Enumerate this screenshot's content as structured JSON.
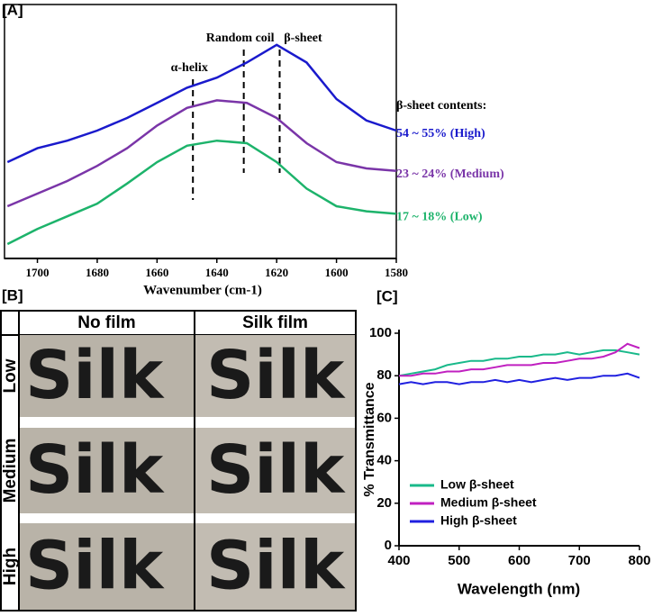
{
  "chart_data": [
    {
      "type": "line",
      "title": "[A]",
      "xlabel": "Wavenumber (cm-1)",
      "x": [
        1710,
        1700,
        1690,
        1680,
        1670,
        1660,
        1650,
        1640,
        1630,
        1620,
        1610,
        1600,
        1590,
        1580
      ],
      "xlim": [
        1711,
        1580
      ],
      "xticks": [
        1700,
        1680,
        1660,
        1640,
        1620,
        1600,
        1580
      ],
      "ylim": [
        0,
        100
      ],
      "legend_title": "β-sheet contents:",
      "series": [
        {
          "name": "54 ~ 55% (High)",
          "color": "#1a1acc",
          "values": [
            37.5,
            43,
            46,
            50,
            55,
            61,
            67,
            71,
            77,
            84,
            77,
            62.5,
            54,
            50
          ]
        },
        {
          "name": "23 ~ 24% (Medium)",
          "color": "#7a35a8",
          "values": [
            20,
            25,
            30,
            36,
            43,
            52,
            59,
            62,
            61,
            55,
            45,
            37.5,
            35,
            34
          ]
        },
        {
          "name": "17 ~ 18% (Low)",
          "color": "#1db36b",
          "values": [
            5,
            11,
            16,
            21,
            29,
            37.5,
            44,
            46,
            45,
            37.5,
            27,
            20,
            18,
            17
          ]
        }
      ],
      "markers": [
        {
          "label": "α-helix",
          "x": 1648
        },
        {
          "label": "Random coil",
          "x": 1631
        },
        {
          "label": "β-sheet",
          "x": 1619
        }
      ]
    },
    {
      "type": "line",
      "title": "[C]",
      "xlabel": "Wavelength (nm)",
      "ylabel": "% Transmittance",
      "x": [
        400,
        420,
        440,
        460,
        480,
        500,
        520,
        540,
        560,
        580,
        600,
        620,
        640,
        660,
        680,
        700,
        720,
        740,
        760,
        780,
        800
      ],
      "xlim": [
        400,
        800
      ],
      "xticks": [
        400,
        500,
        600,
        700,
        800
      ],
      "ylim": [
        0,
        100
      ],
      "yticks": [
        0,
        20,
        40,
        60,
        80,
        100
      ],
      "series": [
        {
          "name": "Low β-sheet",
          "color": "#19b98a",
          "values": [
            80,
            81,
            82,
            83,
            85,
            86,
            87,
            87,
            88,
            88,
            89,
            89,
            90,
            90,
            91,
            90,
            91,
            92,
            92,
            91,
            90
          ]
        },
        {
          "name": "Medium β-sheet",
          "color": "#c020c0",
          "values": [
            80,
            80,
            81,
            81,
            82,
            82,
            83,
            83,
            84,
            85,
            85,
            85,
            86,
            86,
            87,
            88,
            88,
            89,
            91,
            95,
            93
          ]
        },
        {
          "name": "High β-sheet",
          "color": "#2020e0",
          "values": [
            76,
            77,
            76,
            77,
            77,
            76,
            77,
            77,
            78,
            77,
            78,
            77,
            78,
            79,
            78,
            79,
            79,
            80,
            80,
            81,
            79
          ]
        }
      ]
    }
  ],
  "panel_b": {
    "title": "[B]",
    "columns": [
      "No film",
      "Silk film"
    ],
    "rows": [
      "Low",
      "Medium",
      "High"
    ],
    "sample_text": "Silk"
  }
}
